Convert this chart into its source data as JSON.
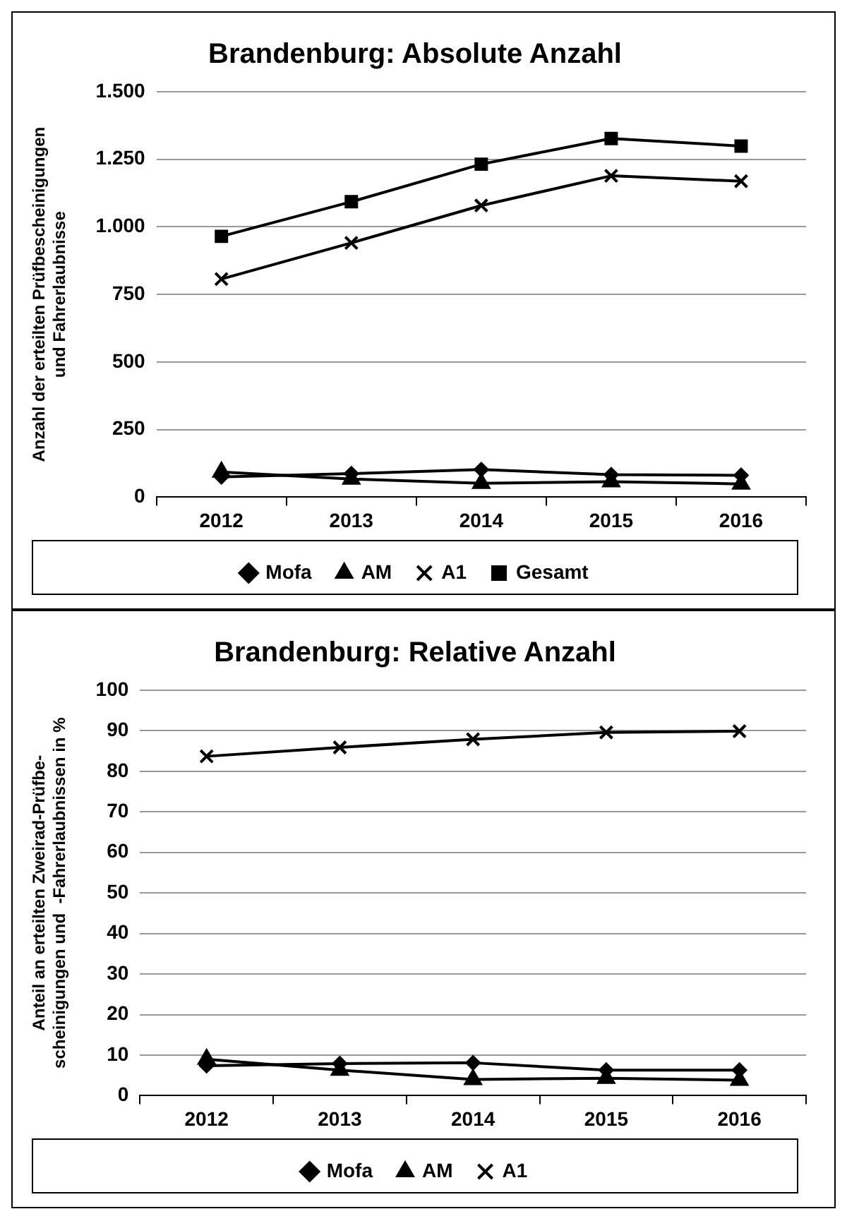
{
  "chart_data": [
    {
      "type": "line",
      "title": "Brandenburg: Absolute Anzahl",
      "ylabel": "Anzahl der erteilten Prüfbescheinigungen\nund Fahrerlaubnisse",
      "categories": [
        "2012",
        "2013",
        "2014",
        "2015",
        "2016"
      ],
      "series": [
        {
          "name": "Mofa",
          "color": "#000000",
          "marker": "diamond",
          "values": [
            75,
            87,
            102,
            83,
            81
          ]
        },
        {
          "name": "AM",
          "color": "#000000",
          "marker": "triangle",
          "values": [
            93,
            67,
            51,
            57,
            49
          ]
        },
        {
          "name": "A1",
          "color": "#000000",
          "marker": "cross",
          "values": [
            807,
            941,
            1079,
            1189,
            1169
          ]
        },
        {
          "name": "Gesamt",
          "color": "#000000",
          "marker": "square",
          "values": [
            965,
            1093,
            1232,
            1327,
            1299
          ]
        }
      ],
      "ylim": [
        0,
        1500
      ],
      "yticks": [
        0,
        250,
        500,
        750,
        {
          "value": 1000,
          "label": "1.000"
        },
        {
          "value": 1250,
          "label": "1.250"
        },
        {
          "value": 1500,
          "label": "1.500"
        }
      ],
      "grid": "y",
      "legend": "bottom",
      "line_style": "solid"
    },
    {
      "type": "line",
      "title": "Brandenburg: Relative Anzahl",
      "ylabel": "Anteil an erteilten Zweirad-Prüfbe-\nscheinigungen und  -Fahrerlaubnissen in %",
      "categories": [
        "2012",
        "2013",
        "2014",
        "2015",
        "2016"
      ],
      "series": [
        {
          "name": "Mofa",
          "color": "#000000",
          "marker": "diamond",
          "values": [
            7.4,
            7.9,
            8.1,
            6.3,
            6.3
          ]
        },
        {
          "name": "AM",
          "color": "#000000",
          "marker": "triangle",
          "values": [
            9.0,
            6.3,
            4.0,
            4.3,
            3.8
          ]
        },
        {
          "name": "A1",
          "color": "#000000",
          "marker": "cross",
          "values": [
            83.7,
            85.9,
            87.9,
            89.6,
            89.9
          ]
        }
      ],
      "ylim": [
        0,
        100
      ],
      "yticks": [
        0,
        10,
        20,
        30,
        40,
        50,
        60,
        70,
        80,
        90,
        100
      ],
      "grid": "y",
      "legend": "bottom",
      "line_style": "solid"
    }
  ]
}
